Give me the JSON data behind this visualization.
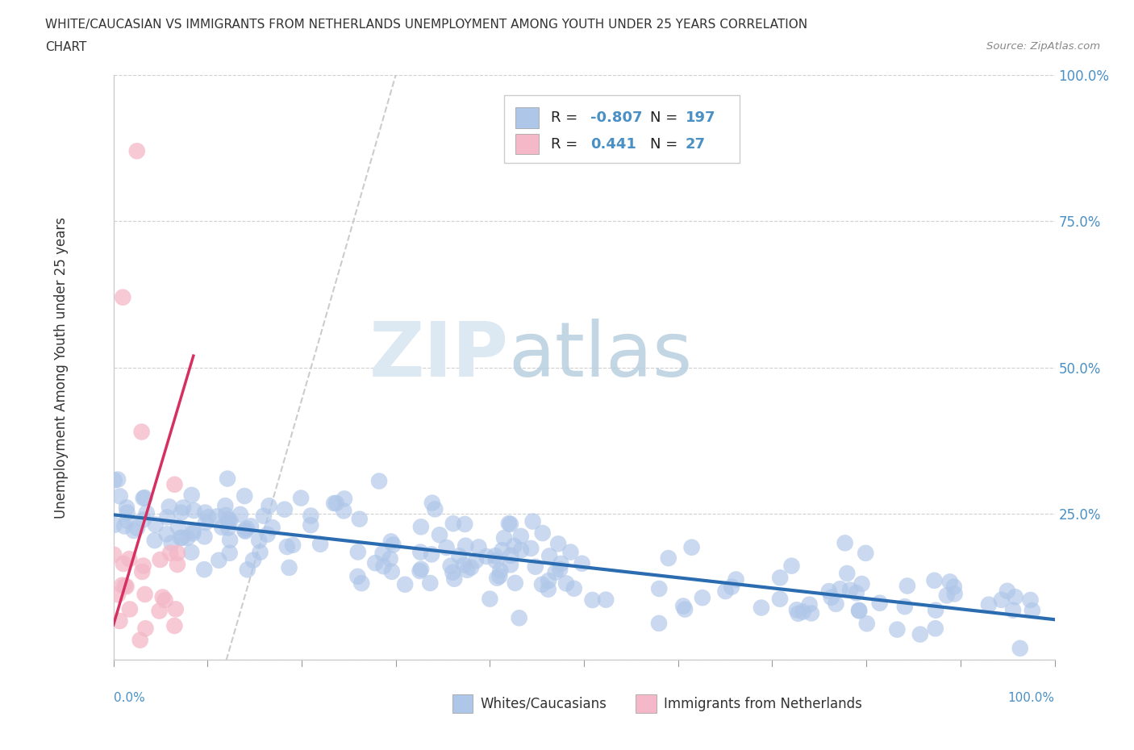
{
  "title_line1": "WHITE/CAUCASIAN VS IMMIGRANTS FROM NETHERLANDS UNEMPLOYMENT AMONG YOUTH UNDER 25 YEARS CORRELATION",
  "title_line2": "CHART",
  "source": "Source: ZipAtlas.com",
  "ylabel": "Unemployment Among Youth under 25 years",
  "legend_blue_label": "Whites/Caucasians",
  "legend_pink_label": "Immigrants from Netherlands",
  "blue_R": "-0.807",
  "blue_N": "197",
  "pink_R": "0.441",
  "pink_N": "27",
  "blue_scatter_color": "#aec6e8",
  "pink_scatter_color": "#f4b8c8",
  "blue_line_color": "#2b6cb0",
  "pink_line_color": "#d63060",
  "trend_line_dashed_color": "#cccccc",
  "background_color": "#ffffff",
  "grid_color": "#d0d0d0",
  "text_color": "#333333",
  "blue_label_color": "#4a90c4",
  "right_axis_color": "#4a90c4",
  "xlim": [
    0.0,
    1.0
  ],
  "ylim": [
    0.0,
    1.0
  ],
  "yticks": [
    0.0,
    0.25,
    0.5,
    0.75,
    1.0
  ],
  "ytick_labels": [
    "",
    "25.0%",
    "50.0%",
    "75.0%",
    "100.0%"
  ]
}
